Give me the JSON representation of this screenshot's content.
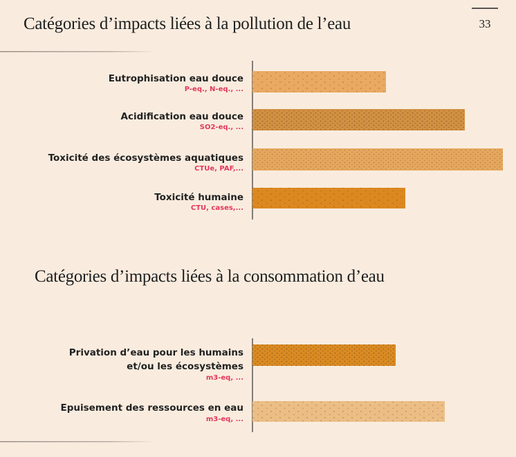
{
  "header": {
    "title": "Catégories d’impacts liées à la pollution de l’eau",
    "page_number": "33"
  },
  "sections": [
    {
      "items": [
        {
          "label": [
            "Eutrophisation eau douce"
          ],
          "unit": "P-eq., N-eq., ..."
        },
        {
          "label": [
            "Acidification eau douce"
          ],
          "unit": "SO2-eq., ..."
        },
        {
          "label": [
            "Toxicité des écosystèmes aquatiques"
          ],
          "unit": "CTUe, PAF,..."
        },
        {
          "label": [
            "Toxicité humaine"
          ],
          "unit": "CTU, cases,..."
        }
      ]
    },
    {
      "title": "Catégories d’impacts liées à la consommation d’eau",
      "items": [
        {
          "label": [
            "Privation d’eau pour les humains",
            "et/ou les écosystèmes"
          ],
          "unit": "m3-eq, ..."
        },
        {
          "label": [
            "Epuisement des ressources en eau"
          ],
          "unit": "m3-eq, ..."
        }
      ]
    }
  ]
}
